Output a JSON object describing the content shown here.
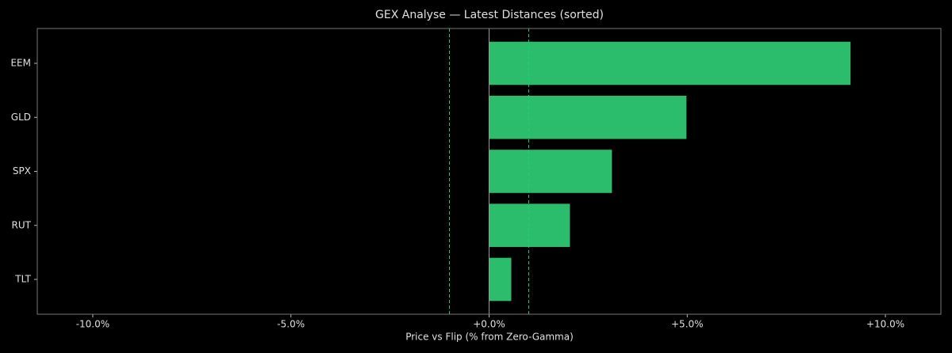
{
  "chart_data": {
    "type": "barh",
    "title": "GEX Analyse — Latest Distances (sorted)",
    "x_label": "Price vs Flip (% from Zero-Gamma)",
    "categories": [
      "EEM",
      "GLD",
      "SPX",
      "RUT",
      "TLT"
    ],
    "values": [
      9.12,
      4.98,
      3.1,
      2.04,
      0.56
    ],
    "color": "#2bbd6b",
    "xlim": [
      -11.4,
      11.4
    ],
    "xticks": [
      {
        "value": -10,
        "label": "-10.0%"
      },
      {
        "value": -5,
        "label": "-5.0%"
      },
      {
        "value": 0,
        "label": "+0.0%"
      },
      {
        "value": 5,
        "label": "+5.0%"
      },
      {
        "value": 10,
        "label": "+10.0%"
      }
    ],
    "threshold_lines": [
      -1,
      1
    ],
    "threshold_color": "#22d07a",
    "grid": false
  }
}
